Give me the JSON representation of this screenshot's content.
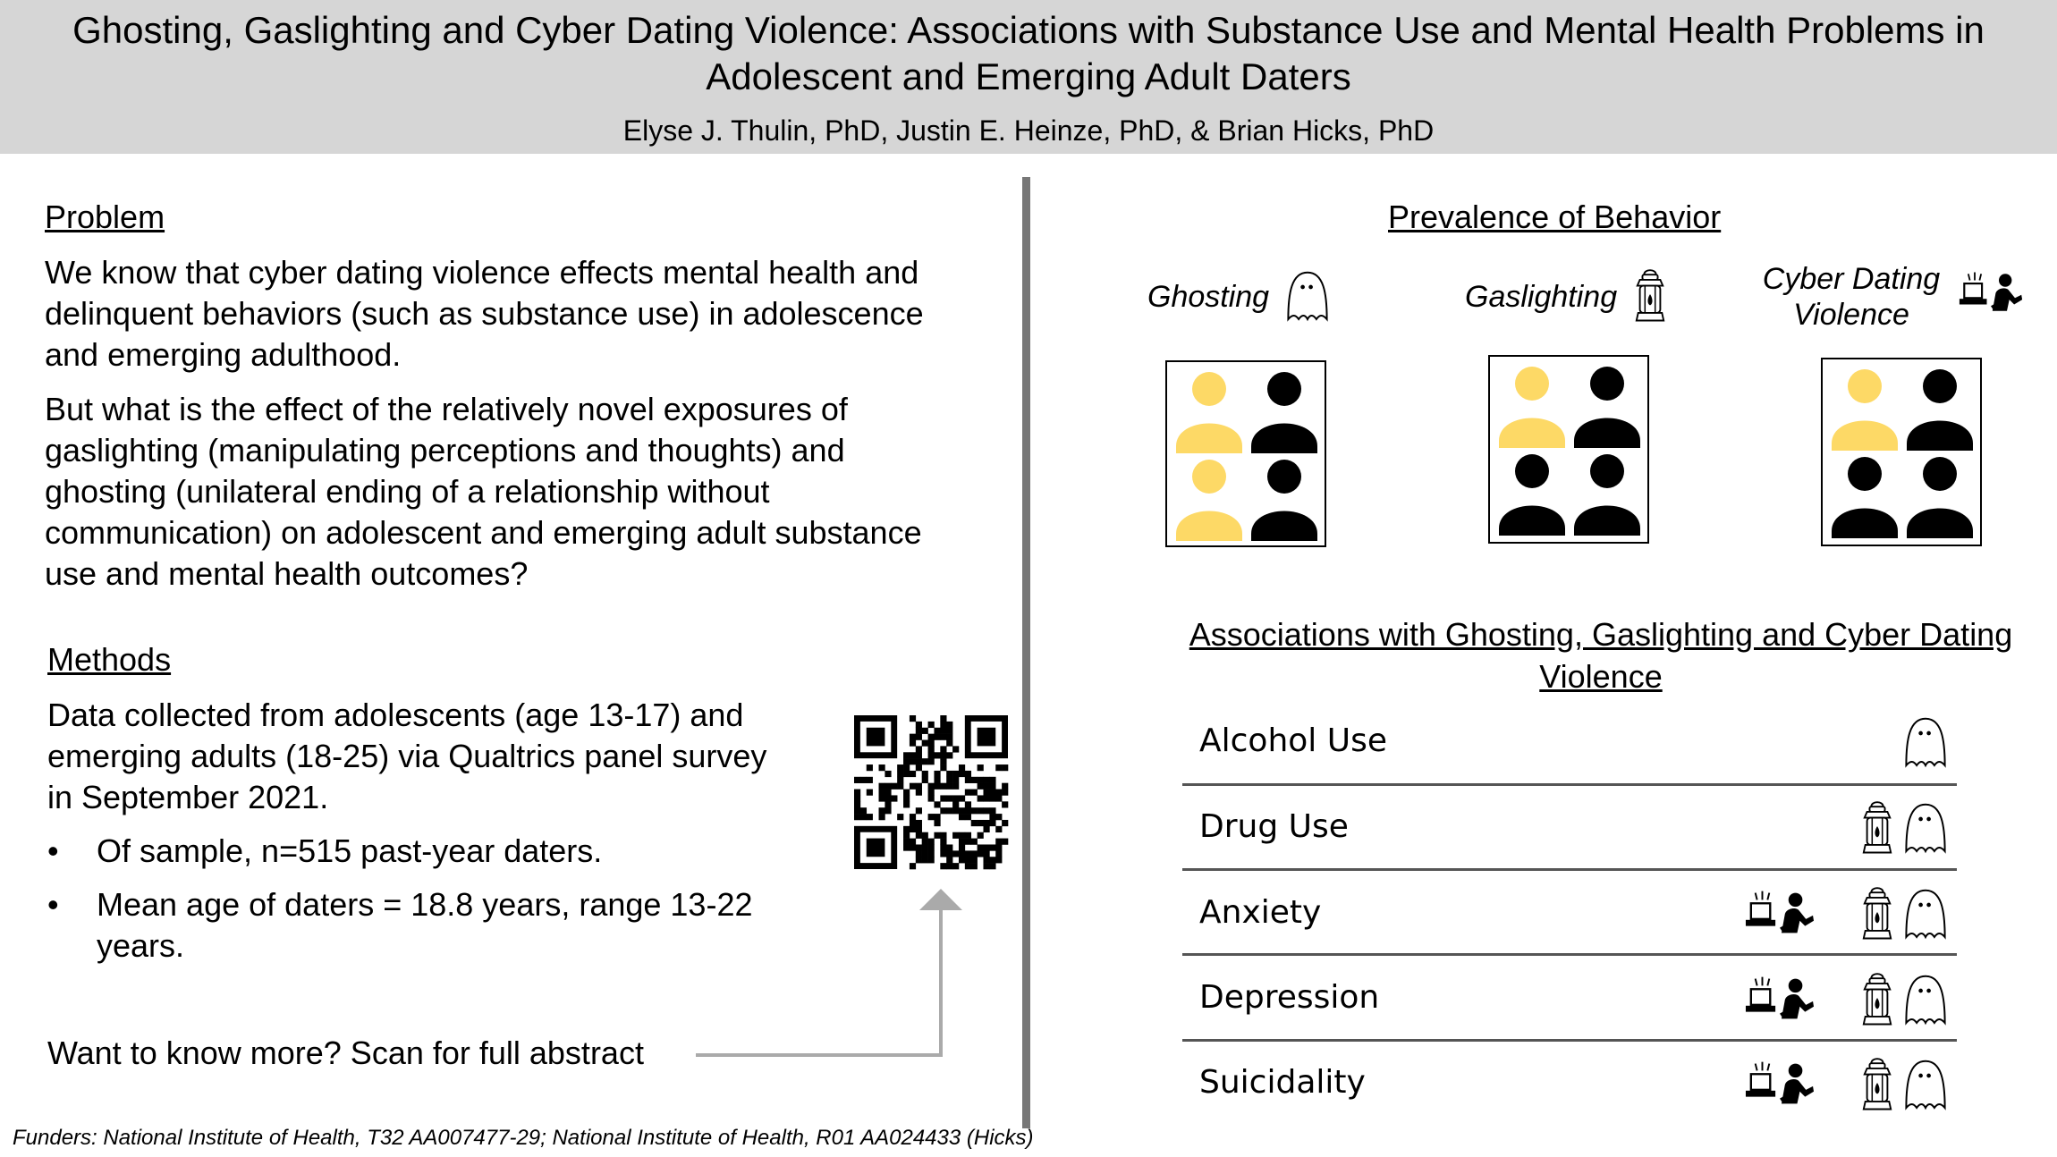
{
  "header": {
    "title_line1": "Ghosting, Gaslighting and Cyber Dating Violence: Associations with Substance Use and Mental Health Problems in",
    "title_line2": "Adolescent and Emerging Adult Daters",
    "authors": "Elyse J. Thulin, PhD, Justin E. Heinze, PhD, & Brian Hicks, PhD"
  },
  "problem": {
    "heading": "Problem",
    "p1": [
      "We know that cyber dating violence effects mental health and",
      "delinquent behaviors (such as substance use) in adolescence",
      "and emerging adulthood."
    ],
    "p2": [
      "But what is the effect of the relatively novel exposures of",
      "gaslighting (manipulating perceptions and thoughts) and",
      "ghosting (unilateral ending of a relationship without",
      "communication) on adolescent and emerging adult substance",
      "use and mental health outcomes?"
    ]
  },
  "methods": {
    "heading": "Methods",
    "p1": [
      "Data collected from adolescents (age 13-17) and",
      "emerging adults (18-25) via Qualtrics panel survey",
      "in September 2021."
    ],
    "bullet_char": "•",
    "bullets": [
      [
        "Of sample, n=515 past-year daters."
      ],
      [
        "Mean age of daters = 18.8 years, range 13-22",
        "years."
      ]
    ],
    "scan_text": "Want to know more? Scan for full abstract"
  },
  "funders": "Funders: National Institute of Health, T32 AA007477-29; National Institute of Health, R01 AA024433 (Hicks)",
  "prevalence": {
    "heading": "Prevalence of Behavior",
    "behaviors": [
      {
        "label_lines": [
          "Ghosting"
        ],
        "icon": "ghost-icon",
        "highlighted": 2
      },
      {
        "label_lines": [
          "Gaslighting"
        ],
        "icon": "lantern-icon",
        "highlighted": 1
      },
      {
        "label_lines": [
          "Cyber Dating",
          "Violence"
        ],
        "icon": "cyber-violence-icon",
        "highlighted": 1
      }
    ],
    "highlight_color": "#fdd966",
    "base_color": "#000000"
  },
  "associations": {
    "heading_line1": "Associations with Ghosting, Gaslighting and Cyber Dating",
    "heading_line2": "Violence",
    "rows": [
      {
        "label": "Alcohol Use",
        "icons": [
          "ghost-icon"
        ]
      },
      {
        "label": "Drug Use",
        "icons": [
          "lantern-icon",
          "ghost-icon"
        ]
      },
      {
        "label": "Anxiety",
        "icons": [
          "cyber-violence-icon",
          "lantern-icon",
          "ghost-icon"
        ]
      },
      {
        "label": "Depression",
        "icons": [
          "cyber-violence-icon",
          "lantern-icon",
          "ghost-icon"
        ]
      },
      {
        "label": "Suicidality",
        "icons": [
          "cyber-violence-icon",
          "lantern-icon",
          "ghost-icon"
        ]
      }
    ]
  }
}
